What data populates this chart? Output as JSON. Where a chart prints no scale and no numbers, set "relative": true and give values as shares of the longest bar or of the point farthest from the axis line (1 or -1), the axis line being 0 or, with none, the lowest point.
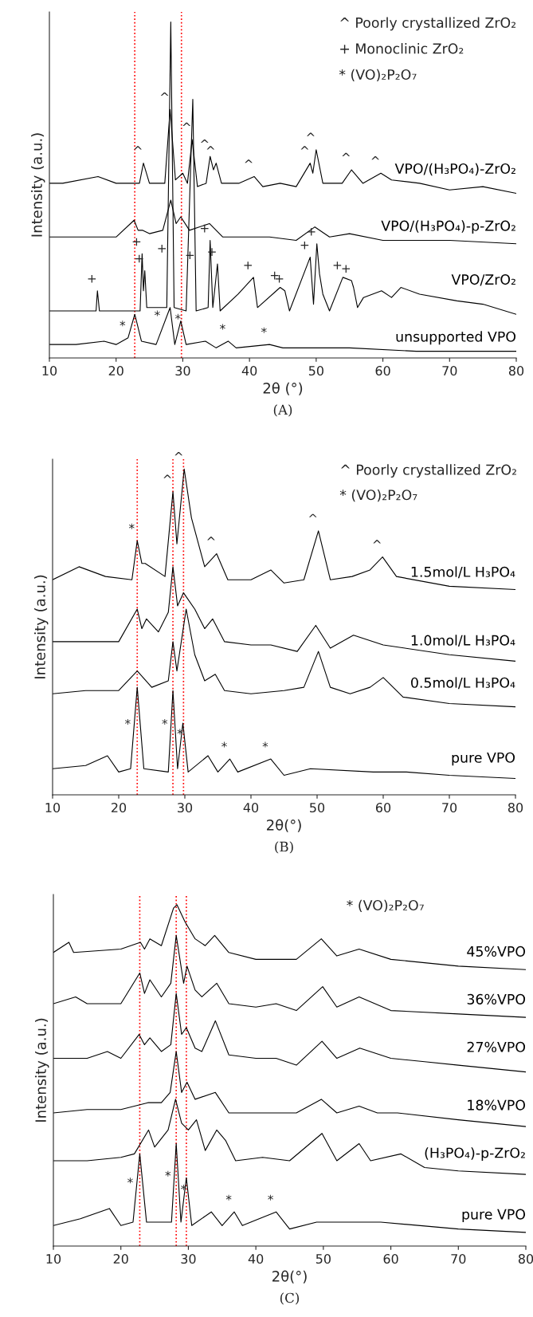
{
  "chart_data": [
    {
      "type": "line",
      "relative": true,
      "xlabel": "2θ (°)",
      "ylabel": "Intensity (a.u.)",
      "xlim": [
        10,
        80
      ],
      "xticks": [
        10,
        20,
        30,
        40,
        50,
        60,
        70,
        80
      ],
      "tick_labels": "x",
      "series": [
        {
          "name": "unsupported VPO",
          "color": "#000000",
          "x": [
            10,
            14,
            18.2,
            20,
            21.8,
            22.8,
            23.8,
            26,
            28.1,
            28.8,
            29.7,
            30.5,
            33.4,
            35,
            36.8,
            38,
            43,
            45,
            55,
            65,
            80
          ],
          "values": [
            0.04,
            0.04,
            0.05,
            0.04,
            0.06,
            0.13,
            0.05,
            0.04,
            0.15,
            0.04,
            0.11,
            0.04,
            0.05,
            0.03,
            0.05,
            0.03,
            0.04,
            0.03,
            0.03,
            0.02,
            0.02
          ]
        },
        {
          "name": "VPO/ZrO₂",
          "color": "#000000",
          "x": [
            10,
            17,
            17.2,
            17.5,
            23.6,
            23.9,
            24.1,
            24.3,
            24.6,
            27.6,
            28.2,
            28.7,
            30.5,
            31.5,
            32,
            33.8,
            34.1,
            34.5,
            35.2,
            35.6,
            38.3,
            40.6,
            41.2,
            44.6,
            45.3,
            46,
            49.1,
            49.6,
            50.1,
            50.5,
            51,
            52,
            54,
            55.3,
            55.6,
            56.2,
            57.1,
            59.8,
            61.3,
            62.7,
            65.5,
            71.1,
            75,
            80
          ],
          "values": [
            0.14,
            0.14,
            0.2,
            0.14,
            0.14,
            0.31,
            0.2,
            0.26,
            0.15,
            0.15,
            1.0,
            0.15,
            0.14,
            0.77,
            0.14,
            0.15,
            0.35,
            0.15,
            0.28,
            0.14,
            0.19,
            0.24,
            0.15,
            0.21,
            0.2,
            0.14,
            0.3,
            0.16,
            0.34,
            0.25,
            0.19,
            0.14,
            0.24,
            0.23,
            0.21,
            0.15,
            0.18,
            0.2,
            0.18,
            0.21,
            0.19,
            0.17,
            0.16,
            0.13
          ]
        },
        {
          "name": "VPO/(H₃PO₄)-p-ZrO₂",
          "color": "#000000",
          "x": [
            10,
            15,
            20,
            22.7,
            23.3,
            24,
            25,
            27,
            28.2,
            29,
            29.7,
            31,
            34,
            36,
            40,
            43,
            47,
            49.8,
            52,
            55,
            60,
            70,
            80
          ],
          "values": [
            0.36,
            0.36,
            0.36,
            0.41,
            0.38,
            0.38,
            0.37,
            0.38,
            0.47,
            0.4,
            0.42,
            0.38,
            0.4,
            0.36,
            0.36,
            0.36,
            0.35,
            0.39,
            0.36,
            0.37,
            0.35,
            0.35,
            0.34
          ]
        },
        {
          "name": "VPO/(H₃PO₄)-ZrO₂",
          "color": "#000000",
          "x": [
            10,
            12,
            17.3,
            20,
            23.5,
            24.1,
            25,
            27.3,
            28.1,
            28.9,
            30,
            30.7,
            31.4,
            32.2,
            33.5,
            34.1,
            34.6,
            35,
            35.8,
            38.4,
            40.7,
            42,
            44.6,
            47,
            49.1,
            49.5,
            50,
            51,
            53.9,
            55.3,
            57,
            59.7,
            61.3,
            65.5,
            70,
            75,
            80
          ],
          "values": [
            0.52,
            0.52,
            0.54,
            0.52,
            0.52,
            0.58,
            0.52,
            0.52,
            0.74,
            0.53,
            0.55,
            0.52,
            0.65,
            0.51,
            0.52,
            0.6,
            0.56,
            0.58,
            0.52,
            0.52,
            0.54,
            0.51,
            0.52,
            0.51,
            0.58,
            0.55,
            0.62,
            0.52,
            0.52,
            0.56,
            0.52,
            0.55,
            0.53,
            0.52,
            0.5,
            0.51,
            0.49
          ]
        }
      ],
      "ref_lines": [
        {
          "axis": "x",
          "value": 22.8,
          "color": "#ff0000",
          "line_style": "dotted"
        },
        {
          "axis": "x",
          "value": 29.8,
          "color": "#ff0000",
          "line_style": "dotted"
        }
      ],
      "annotations": [
        "^ Poorly crystallized ZrO₂",
        "+ Monoclinic ZrO₂",
        "* (VO)₂P₂O₇",
        "(A)",
        {
          "text": "^",
          "x": 24.1,
          "y": 0.58
        },
        {
          "text": "^",
          "x": 28.1,
          "y": 0.74
        },
        {
          "text": "^",
          "x": 31.4,
          "y": 0.65
        },
        {
          "text": "^",
          "x": 34.1,
          "y": 0.6
        },
        {
          "text": "^",
          "x": 35,
          "y": 0.58
        },
        {
          "text": "^",
          "x": 40.7,
          "y": 0.54
        },
        {
          "text": "^",
          "x": 49.1,
          "y": 0.58
        },
        {
          "text": "^",
          "x": 50,
          "y": 0.62
        },
        {
          "text": "^",
          "x": 55.3,
          "y": 0.56
        },
        {
          "text": "^",
          "x": 59.7,
          "y": 0.55
        },
        {
          "text": "+",
          "x": 17.2,
          "y": 0.2
        },
        {
          "text": "+",
          "x": 23.9,
          "y": 0.31
        },
        {
          "text": "+",
          "x": 24.3,
          "y": 0.26
        },
        {
          "text": "+",
          "x": 27.7,
          "y": 0.29
        },
        {
          "text": "+",
          "x": 31.9,
          "y": 0.27
        },
        {
          "text": "+",
          "x": 34.1,
          "y": 0.35
        },
        {
          "text": "+",
          "x": 35.2,
          "y": 0.28
        },
        {
          "text": "+",
          "x": 40.6,
          "y": 0.24
        },
        {
          "text": "+",
          "x": 44.6,
          "y": 0.21
        },
        {
          "text": "+",
          "x": 45.3,
          "y": 0.2
        },
        {
          "text": "+",
          "x": 49.1,
          "y": 0.3
        },
        {
          "text": "+",
          "x": 50.1,
          "y": 0.34
        },
        {
          "text": "+",
          "x": 54,
          "y": 0.24
        },
        {
          "text": "+",
          "x": 55.3,
          "y": 0.23
        },
        {
          "text": "*",
          "x": 21.8,
          "y": 0.06
        },
        {
          "text": "*",
          "x": 27,
          "y": 0.09
        },
        {
          "text": "*",
          "x": 30.1,
          "y": 0.08
        },
        {
          "text": "*",
          "x": 36.8,
          "y": 0.05
        },
        {
          "text": "*",
          "x": 43,
          "y": 0.04
        }
      ]
    },
    {
      "type": "line",
      "relative": true,
      "xlabel": "2θ(°)",
      "ylabel": "Intensity (a.u.)",
      "xlim": [
        10,
        80
      ],
      "xticks": [
        10,
        20,
        30,
        40,
        50,
        60,
        70,
        80
      ],
      "tick_labels": "x",
      "series": [
        {
          "name": "pure VPO",
          "color": "#000000",
          "x": [
            10,
            15,
            18.3,
            20,
            21.8,
            22.8,
            23.8,
            27.5,
            28.2,
            28.9,
            29.7,
            30.5,
            33.5,
            35,
            36.8,
            38,
            43,
            45,
            49,
            58.5,
            63.5,
            70,
            80
          ],
          "values": [
            0.08,
            0.09,
            0.12,
            0.07,
            0.08,
            0.33,
            0.08,
            0.07,
            0.32,
            0.08,
            0.22,
            0.07,
            0.12,
            0.07,
            0.11,
            0.07,
            0.11,
            0.06,
            0.08,
            0.07,
            0.07,
            0.06,
            0.05
          ]
        },
        {
          "name": "0.5mol/L H₃PO₄",
          "color": "#000000",
          "x": [
            10,
            15,
            20,
            22.8,
            25,
            27.5,
            28.2,
            28.8,
            30.2,
            31.5,
            33,
            34.6,
            36,
            40,
            45,
            48,
            50.2,
            52,
            55,
            58,
            60,
            63,
            70,
            80
          ],
          "values": [
            0.31,
            0.32,
            0.32,
            0.38,
            0.33,
            0.35,
            0.47,
            0.38,
            0.57,
            0.43,
            0.35,
            0.37,
            0.32,
            0.31,
            0.32,
            0.33,
            0.44,
            0.33,
            0.31,
            0.33,
            0.36,
            0.3,
            0.28,
            0.27
          ]
        },
        {
          "name": "1.0mol/L H₃PO₄",
          "color": "#000000",
          "x": [
            10,
            15,
            20,
            22.8,
            23.5,
            24.2,
            26,
            27.5,
            28.2,
            28.9,
            29.8,
            31.5,
            33,
            34.2,
            36,
            40,
            43,
            47,
            49.8,
            52,
            55.5,
            60,
            70,
            80
          ],
          "values": [
            0.47,
            0.47,
            0.47,
            0.57,
            0.51,
            0.54,
            0.5,
            0.56,
            0.7,
            0.58,
            0.62,
            0.57,
            0.51,
            0.54,
            0.47,
            0.46,
            0.46,
            0.44,
            0.52,
            0.45,
            0.49,
            0.46,
            0.43,
            0.41
          ]
        },
        {
          "name": "1.5mol/L H₃PO₄",
          "color": "#000000",
          "x": [
            10,
            14,
            18,
            22,
            22.8,
            23.5,
            24,
            27,
            28.2,
            28.8,
            29.9,
            31,
            33,
            34.8,
            36.5,
            40,
            43,
            45,
            48,
            50.2,
            52,
            55.3,
            58,
            59.9,
            62,
            70,
            80
          ],
          "values": [
            0.66,
            0.7,
            0.67,
            0.66,
            0.78,
            0.71,
            0.71,
            0.67,
            0.93,
            0.77,
            1.0,
            0.85,
            0.7,
            0.74,
            0.66,
            0.66,
            0.69,
            0.65,
            0.66,
            0.81,
            0.66,
            0.67,
            0.69,
            0.73,
            0.67,
            0.64,
            0.63
          ]
        }
      ],
      "ref_lines": [
        {
          "axis": "x",
          "value": 22.8,
          "color": "#ff0000",
          "line_style": "dotted"
        },
        {
          "axis": "x",
          "value": 28.2,
          "color": "#ff0000",
          "line_style": "dotted"
        },
        {
          "axis": "x",
          "value": 29.8,
          "color": "#ff0000",
          "line_style": "dotted"
        }
      ],
      "annotations": [
        "^ Poorly crystallized ZrO₂",
        "* (VO)₂P₂O₇",
        "(B)",
        {
          "text": "*",
          "x": 22.8,
          "y": 0.78
        },
        {
          "text": "^",
          "x": 28.2,
          "y": 0.93
        },
        {
          "text": "^",
          "x": 29.9,
          "y": 1.0
        },
        {
          "text": "^",
          "x": 34.8,
          "y": 0.74
        },
        {
          "text": "^",
          "x": 50.2,
          "y": 0.81
        },
        {
          "text": "^",
          "x": 59.9,
          "y": 0.73
        },
        {
          "text": "*",
          "x": 22.2,
          "y": 0.18
        },
        {
          "text": "*",
          "x": 27.8,
          "y": 0.18
        },
        {
          "text": "*",
          "x": 30.1,
          "y": 0.15
        },
        {
          "text": "*",
          "x": 36.8,
          "y": 0.11
        },
        {
          "text": "*",
          "x": 43,
          "y": 0.11
        }
      ]
    },
    {
      "type": "line",
      "relative": true,
      "xlabel": "2θ(°)",
      "ylabel": "Intensity (a.u.)",
      "xlim": [
        10,
        80
      ],
      "xticks": [
        10,
        20,
        30,
        40,
        50,
        60,
        70,
        80
      ],
      "tick_labels": "x",
      "series": [
        {
          "name": "pure VPO",
          "color": "#000000",
          "x": [
            10,
            14,
            18.3,
            20,
            21.8,
            22.8,
            23.8,
            27.5,
            28.2,
            28.9,
            29.7,
            30.5,
            33.4,
            35,
            36.8,
            38,
            43,
            45,
            49,
            58.5,
            70,
            80
          ],
          "values": [
            0.06,
            0.08,
            0.11,
            0.06,
            0.07,
            0.27,
            0.07,
            0.07,
            0.3,
            0.07,
            0.2,
            0.06,
            0.1,
            0.06,
            0.1,
            0.06,
            0.1,
            0.05,
            0.07,
            0.07,
            0.05,
            0.04
          ]
        },
        {
          "name": "(H₃PO₄)-p-ZrO₂",
          "color": "#000000",
          "x": [
            10,
            15,
            20,
            22,
            24.1,
            25,
            27,
            28.1,
            29,
            30,
            31.2,
            32.5,
            34.2,
            35.5,
            37,
            41,
            45,
            49.8,
            52,
            55.3,
            57,
            61.5,
            65,
            70,
            80
          ],
          "values": [
            0.25,
            0.25,
            0.26,
            0.27,
            0.34,
            0.29,
            0.34,
            0.43,
            0.36,
            0.34,
            0.37,
            0.28,
            0.34,
            0.31,
            0.25,
            0.26,
            0.25,
            0.33,
            0.25,
            0.3,
            0.25,
            0.27,
            0.23,
            0.22,
            0.21
          ]
        },
        {
          "name": "18%VPO",
          "color": "#000000",
          "x": [
            10,
            15,
            20,
            24,
            26,
            27.3,
            28.2,
            29,
            29.8,
            31,
            34,
            36,
            40,
            43,
            46,
            49.7,
            52,
            55.3,
            58,
            61,
            70,
            80
          ],
          "values": [
            0.39,
            0.4,
            0.4,
            0.42,
            0.42,
            0.45,
            0.57,
            0.45,
            0.48,
            0.43,
            0.45,
            0.39,
            0.39,
            0.39,
            0.39,
            0.43,
            0.39,
            0.41,
            0.39,
            0.39,
            0.37,
            0.35
          ]
        },
        {
          "name": "27%VPO",
          "color": "#000000",
          "x": [
            10,
            15,
            18,
            20,
            22.7,
            23.5,
            24.3,
            26,
            27.4,
            28.2,
            29,
            29.7,
            31,
            32,
            34,
            36,
            40,
            43,
            46,
            49.8,
            52,
            55.4,
            60,
            65,
            70,
            80
          ],
          "values": [
            0.55,
            0.55,
            0.57,
            0.55,
            0.62,
            0.59,
            0.61,
            0.57,
            0.59,
            0.74,
            0.62,
            0.64,
            0.58,
            0.57,
            0.66,
            0.56,
            0.55,
            0.55,
            0.53,
            0.6,
            0.55,
            0.58,
            0.55,
            0.54,
            0.53,
            0.51
          ]
        },
        {
          "name": "36%VPO",
          "color": "#000000",
          "x": [
            10,
            13.3,
            15,
            20,
            22.8,
            23.5,
            24.3,
            26,
            27.4,
            28.2,
            29.3,
            29.8,
            31,
            32,
            34.2,
            36,
            40,
            43,
            46,
            49.9,
            52,
            55.3,
            60,
            70,
            80
          ],
          "values": [
            0.71,
            0.73,
            0.71,
            0.71,
            0.8,
            0.74,
            0.78,
            0.73,
            0.77,
            0.91,
            0.77,
            0.82,
            0.75,
            0.73,
            0.77,
            0.71,
            0.7,
            0.71,
            0.69,
            0.76,
            0.7,
            0.73,
            0.69,
            0.68,
            0.67
          ]
        },
        {
          "name": "45%VPO",
          "color": "#000000",
          "x": [
            10,
            12.3,
            13,
            20,
            22.9,
            23.5,
            24.3,
            26,
            27.8,
            28.3,
            29.5,
            31,
            32.5,
            33.9,
            36,
            40,
            46,
            49.7,
            52,
            55.3,
            60,
            70,
            80
          ],
          "values": [
            0.86,
            0.89,
            0.86,
            0.87,
            0.89,
            0.87,
            0.9,
            0.88,
            0.99,
            1.0,
            0.95,
            0.9,
            0.88,
            0.91,
            0.86,
            0.84,
            0.84,
            0.9,
            0.85,
            0.87,
            0.84,
            0.82,
            0.81
          ]
        }
      ],
      "ref_lines": [
        {
          "axis": "x",
          "value": 22.8,
          "color": "#ff0000",
          "line_style": "dotted"
        },
        {
          "axis": "x",
          "value": 28.2,
          "color": "#ff0000",
          "line_style": "dotted"
        },
        {
          "axis": "x",
          "value": 29.7,
          "color": "#ff0000",
          "line_style": "dotted"
        }
      ],
      "annotations": [
        "* (VO)₂P₂O₇",
        "(C)",
        {
          "text": "*",
          "x": 22.2,
          "y": 0.15
        },
        {
          "text": "*",
          "x": 27.8,
          "y": 0.17
        },
        {
          "text": "*",
          "x": 30.1,
          "y": 0.13
        },
        {
          "text": "*",
          "x": 36.8,
          "y": 0.1
        },
        {
          "text": "*",
          "x": 43,
          "y": 0.1
        }
      ]
    }
  ]
}
